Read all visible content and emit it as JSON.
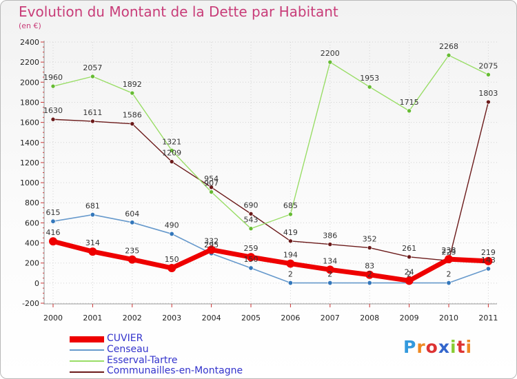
{
  "chart_data": {
    "type": "line",
    "title": "Evolution du Montant de la Dette par Habitant",
    "subtitle": "(en €)",
    "xlabel": "",
    "ylabel": "",
    "categories": [
      "2000",
      "2001",
      "2002",
      "2003",
      "2004",
      "2005",
      "2006",
      "2007",
      "2008",
      "2009",
      "2010",
      "2011"
    ],
    "ylim": [
      -200,
      2400
    ],
    "yticks": [
      -200,
      0,
      200,
      400,
      600,
      800,
      1000,
      1200,
      1400,
      1600,
      1800,
      2000,
      2200,
      2400
    ],
    "legend_position": "bottom-left",
    "series": [
      {
        "name": "Communailles-en-Montagne",
        "color": "#6b1a1a",
        "marker": "#6b1a1a",
        "values": [
          1630,
          1611,
          1586,
          1209,
          954,
          690,
          419,
          386,
          352,
          261,
          223,
          1803
        ]
      },
      {
        "name": "Esserval-Tartre",
        "color": "#99dd66",
        "marker": "#66bb33",
        "values": [
          1960,
          2057,
          1892,
          1321,
          907,
          543,
          685,
          2200,
          1953,
          1715,
          2268,
          2075
        ]
      },
      {
        "name": "Censeau",
        "color": "#6699cc",
        "marker": "#3377bb",
        "values": [
          615,
          681,
          604,
          490,
          295,
          150,
          2,
          2,
          2,
          2,
          2,
          143
        ]
      },
      {
        "name": "CUVIER",
        "color": "#ee0000",
        "marker": "#ee0000",
        "values": [
          416,
          314,
          235,
          150,
          332,
          259,
          194,
          134,
          83,
          24,
          238,
          219
        ]
      }
    ]
  },
  "legend": [
    {
      "name": "CUVIER"
    },
    {
      "name": "Censeau"
    },
    {
      "name": "Esserval-Tartre"
    },
    {
      "name": "Communailles-en-Montagne"
    }
  ],
  "logo": {
    "text": "Proxiti",
    "letters": [
      "P",
      "r",
      "o",
      "x",
      "i",
      "t",
      "i"
    ],
    "colors": [
      "#3399dd",
      "#ee8822",
      "#dd3333",
      "#3366cc",
      "#88cc33",
      "#dd3333",
      "#ee8822"
    ]
  }
}
